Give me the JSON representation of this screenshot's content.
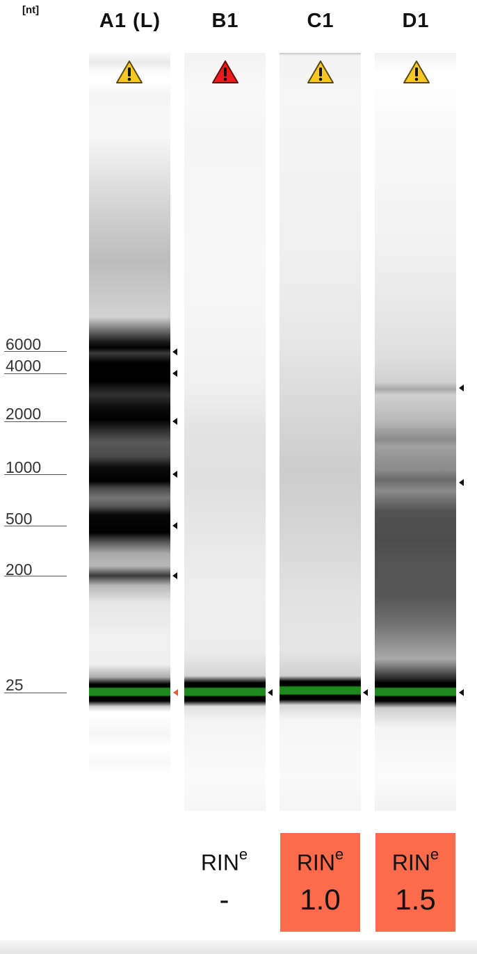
{
  "unit_label": "[nt]",
  "lanes": [
    {
      "title": "A1 (L)",
      "warning": "warning-yellow-icon",
      "rin_label": "",
      "rin_sup": "",
      "rin_value": ""
    },
    {
      "title": "B1",
      "warning": "warning-red-icon",
      "rin_label": "RIN",
      "rin_sup": "e",
      "rin_value": "-"
    },
    {
      "title": "C1",
      "warning": "warning-yellow-icon",
      "rin_label": "RIN",
      "rin_sup": "e",
      "rin_value": "1.0"
    },
    {
      "title": "D1",
      "warning": "warning-yellow-icon",
      "rin_label": "RIN",
      "rin_sup": "e",
      "rin_value": "1.5"
    }
  ],
  "size_markers": [
    {
      "label": "6000"
    },
    {
      "label": "4000"
    },
    {
      "label": "2000"
    },
    {
      "label": "1000"
    },
    {
      "label": "500"
    },
    {
      "label": "200"
    },
    {
      "label": "25"
    }
  ],
  "colors": {
    "rin_box": "#fb6b4c",
    "lower_marker_band": "#1e8a1e",
    "warning_yellow": "#f7c825",
    "warning_red": "#e81c1c"
  }
}
